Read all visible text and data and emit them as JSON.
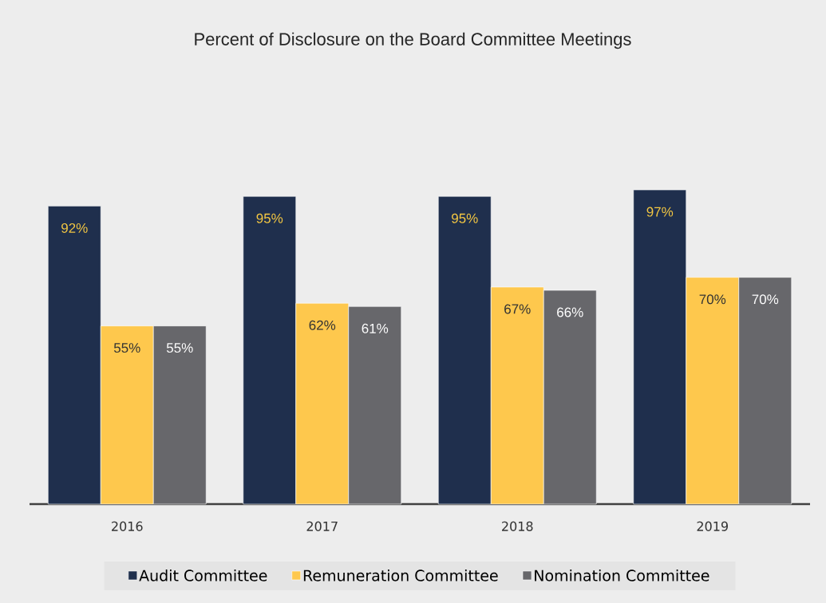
{
  "chart_data": {
    "type": "bar",
    "title": "Percent of Disclosure on the Board Committee Meetings",
    "categories": [
      "2016",
      "2017",
      "2018",
      "2019"
    ],
    "series": [
      {
        "name": "Audit Committee",
        "color": "#1f2f4d",
        "values": [
          92,
          95,
          95,
          97
        ],
        "value_labels": [
          "92%",
          "95%",
          "95%",
          "97%"
        ]
      },
      {
        "name": "Remuneration Committee",
        "color": "#fec84d",
        "values": [
          55,
          62,
          67,
          70
        ],
        "value_labels": [
          "55%",
          "62%",
          "67%",
          "70%"
        ]
      },
      {
        "name": "Nomination Committee",
        "color": "#67676b",
        "values": [
          55,
          61,
          66,
          70
        ],
        "value_labels": [
          "55%",
          "61%",
          "66%",
          "70%"
        ]
      }
    ],
    "legend": "bottom"
  }
}
